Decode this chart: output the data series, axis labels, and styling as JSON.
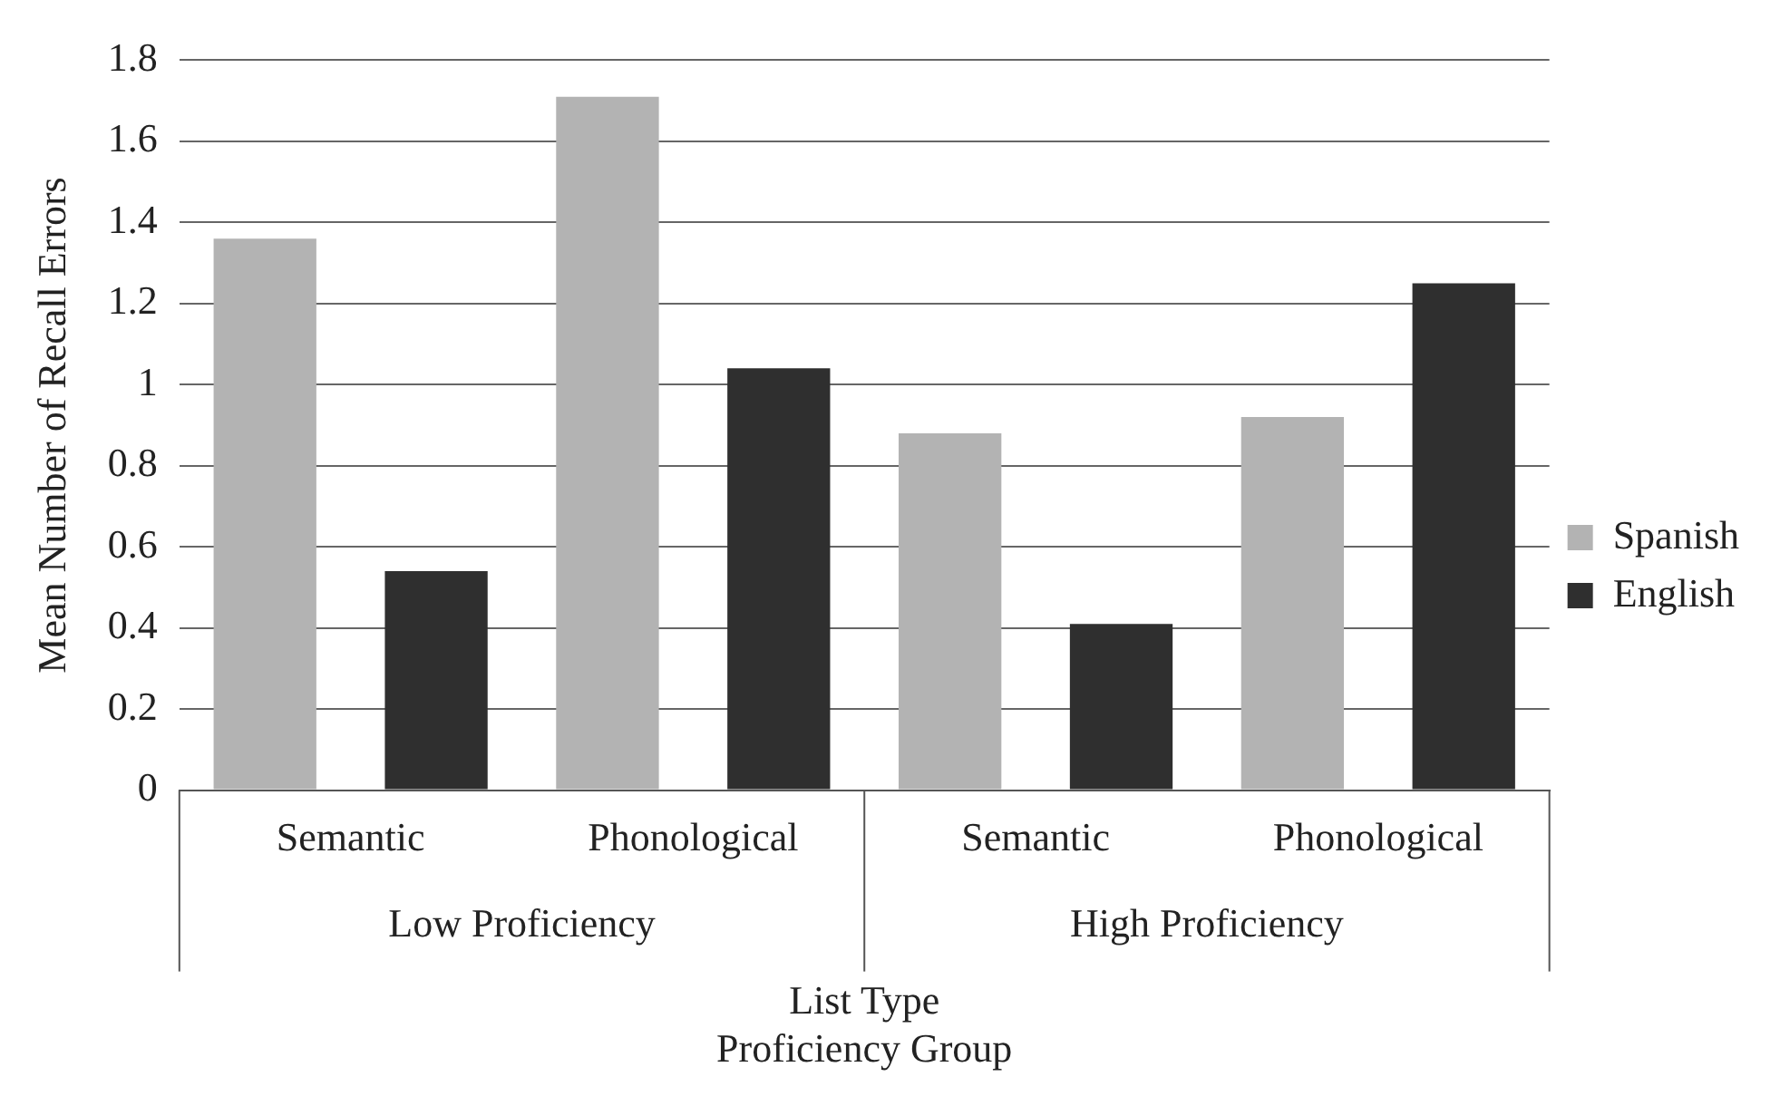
{
  "chart_data": {
    "type": "bar",
    "ylabel": "Mean Number of Recall Errors",
    "xlabel": "List Type\nProficiency Group",
    "categories": [
      "Semantic",
      "Phonological",
      "Semantic",
      "Phonological"
    ],
    "annotations": [
      "Low Proficiency",
      "High Proficiency"
    ],
    "series": [
      {
        "name": "Spanish",
        "color": "#b3b3b3",
        "values": [
          1.36,
          1.71,
          0.88,
          0.92
        ]
      },
      {
        "name": "English",
        "color": "#2f2f2f",
        "values": [
          0.54,
          1.04,
          0.41,
          1.25
        ]
      }
    ],
    "ylim": [
      0,
      1.8
    ],
    "yticks": [
      0,
      0.2,
      0.4,
      0.6,
      0.8,
      1,
      1.2,
      1.4,
      1.6,
      1.8
    ],
    "grid": "y",
    "legend": "right"
  }
}
